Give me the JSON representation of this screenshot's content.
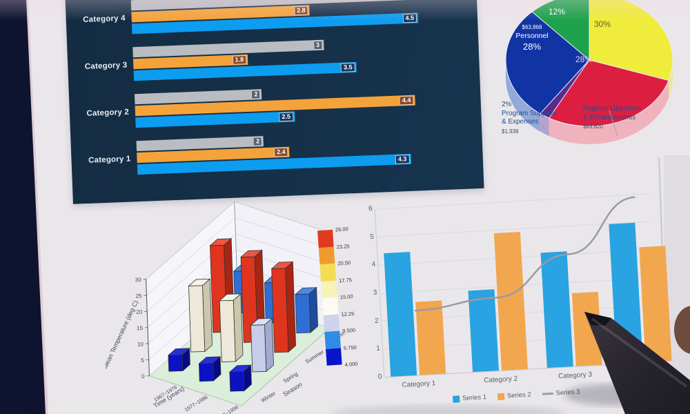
{
  "screen": {
    "background": "#eae7ea",
    "bezel_color": "#0e1430"
  },
  "chart_data": [
    {
      "id": "grouped-horizontal-bars",
      "type": "bar",
      "orientation": "horizontal",
      "panel_bg": "#16334d",
      "categories": [
        "Category 4",
        "Category 3",
        "Category 2",
        "Category 1"
      ],
      "xlim": [
        0,
        5.15
      ],
      "series": [
        {
          "name": "gray",
          "color": "#b9bcc1",
          "chip_bg": "#566070",
          "values": [
            5,
            3,
            2,
            2
          ]
        },
        {
          "name": "orange",
          "color": "#f4a33a",
          "chip_bg": "#8a4a26",
          "values": [
            2.8,
            1.8,
            4.4,
            2.4
          ]
        },
        {
          "name": "blue",
          "color": "#0d9df0",
          "chip_bg": "#16385e",
          "values": [
            4.5,
            3.5,
            2.5,
            4.3
          ]
        }
      ]
    },
    {
      "id": "budget-pie",
      "type": "pie",
      "slices": [
        {
          "pct": 30,
          "label": "30%",
          "color": "#f0ec3c",
          "side": "#eae69a",
          "label_color": "#61612d"
        },
        {
          "pct": 28,
          "label": "28%",
          "color": "#dc1f41",
          "side": "#f0b3bd",
          "label_color": "#f3cdd4"
        },
        {
          "pct": 2,
          "label": "",
          "color": "#5a2b8d",
          "side": "#b3a3cf",
          "label_color": "#ffffff"
        },
        {
          "pct": 28,
          "label": "28%",
          "color": "#1134a4",
          "side": "#93a9da",
          "label_color": "#ffffff",
          "extra_lines": [
            "$63,868",
            "Personnel"
          ]
        },
        {
          "pct": 12,
          "label": "12%",
          "color": "#1ea24c",
          "side": "#9ed0ae",
          "label_color": "#ffffff"
        }
      ],
      "callouts": [
        {
          "lines": [
            "2%",
            "Program Supplies",
            "& Expenses"
          ],
          "money": "$1,939"
        },
        {
          "lines": [
            "Registry Operation",
            "& Enhancements"
          ],
          "money": "$63,820"
        }
      ]
    },
    {
      "id": "temperature-3d-bars",
      "type": "bar",
      "dimensions": "3d",
      "ylabel": "Mean Temperature (deg C)",
      "yticks": [
        "0",
        "5",
        "10",
        "15",
        "20",
        "25",
        "30"
      ],
      "ylim": [
        0,
        30
      ],
      "xlabel": "Time (years)",
      "xticks": [
        "1967~1976",
        "1977~1986",
        "1987~1996"
      ],
      "zlabel": "Season",
      "zticks": [
        "Winter",
        "Spring",
        "Summer",
        "Autumn"
      ],
      "rows": [
        {
          "season": "Winter",
          "values": [
            5,
            5.5,
            6
          ],
          "face": "#0a12c4",
          "side": "#060b85",
          "top": "#2430dd"
        },
        {
          "season": "Spring",
          "values": [
            20.5,
            19,
            14.5
          ],
          "face": "#ece9d8",
          "side": "#cbc7ad",
          "top": "#f6f4e8",
          "overrides": {
            "2": {
              "face": "#c6cce9",
              "side": "#a3aacf",
              "top": "#dce0f3"
            }
          }
        },
        {
          "season": "Summer",
          "values": [
            27,
            26.5,
            26
          ],
          "face": "#df341e",
          "side": "#a62513",
          "top": "#ee5540"
        },
        {
          "season": "Autumn",
          "values": [
            13,
            12.5,
            12
          ],
          "face": "#2e6ed5",
          "side": "#1d4c9c",
          "top": "#4d88e3"
        }
      ],
      "colorbar_ticks": [
        "26.00",
        "23.25",
        "20.50",
        "17.75",
        "15.00",
        "12.25",
        "9.500",
        "6.750",
        "4.000"
      ],
      "colorbar_colors": [
        "#e23a20",
        "#f09a2e",
        "#f2dd55",
        "#f8f2b8",
        "#fbfbf2",
        "#ccd4ec",
        "#2f8de6",
        "#0b14cc"
      ]
    },
    {
      "id": "series-columns",
      "type": "bar",
      "categories": [
        "Category 1",
        "Category 2",
        "Category 3",
        ""
      ],
      "ylim": [
        0,
        6
      ],
      "yticks": [
        "0",
        "1",
        "2",
        "3",
        "4",
        "5",
        "6"
      ],
      "group_centers": [
        49,
        168,
        276,
        377
      ],
      "series": [
        {
          "name": "Series 1",
          "kind": "bar",
          "color": "#29a3e2",
          "values": [
            4.4,
            2.9,
            4.1,
            5.0
          ]
        },
        {
          "name": "Series 2",
          "kind": "bar",
          "color": "#f2a64e",
          "values": [
            2.6,
            4.9,
            2.6,
            4.1
          ]
        },
        {
          "name": "Series 3",
          "kind": "line",
          "color": "#9b9ba1",
          "values": [
            2.3,
            2.6,
            4.0,
            5.9
          ]
        }
      ]
    }
  ]
}
